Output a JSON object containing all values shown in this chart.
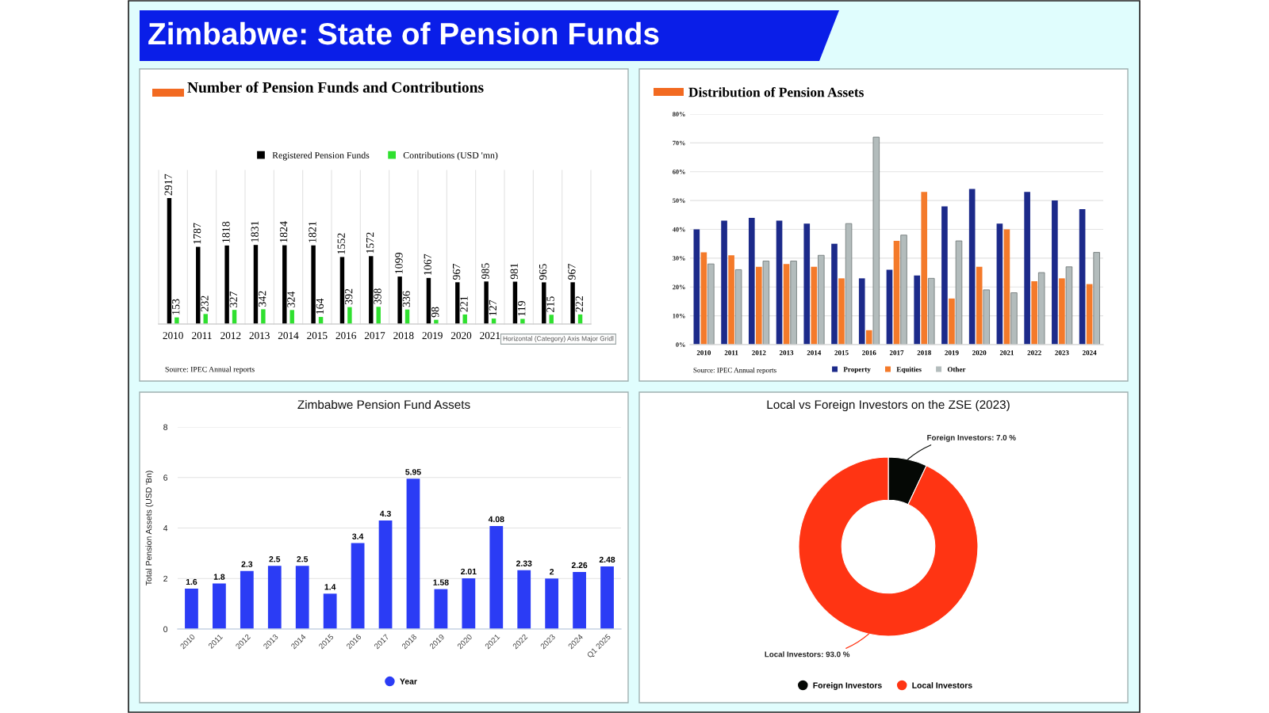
{
  "chart_data": [
    {
      "type": "other",
      "title": "Zimbabwe: State of Pension Funds"
    },
    {
      "type": "bar",
      "title": "Number of Pension Funds and Contributions",
      "categories": [
        "2010",
        "2011",
        "2012",
        "2013",
        "2014",
        "2015",
        "2016",
        "2017",
        "2018",
        "2019",
        "2020",
        "2021",
        null,
        null,
        null
      ],
      "series": [
        {
          "name": "Registered Pension Funds",
          "color": "#000000",
          "values": [
            2917,
            1787,
            1818,
            1831,
            1824,
            1821,
            1552,
            1572,
            1099,
            1067,
            967,
            985,
            981,
            965,
            967
          ]
        },
        {
          "name": "Contributions (USD 'mn)",
          "color": "#2fe02f",
          "values": [
            153,
            232,
            327,
            342,
            324,
            164,
            392,
            398,
            336,
            98,
            221,
            127,
            119,
            215,
            222
          ]
        }
      ],
      "data_labels": true,
      "grid": "x",
      "legend": "top",
      "tick_labels": "x",
      "annotations": [
        "Source: IPEC Annual reports",
        "Horizontal (Category) Axis Major Gridl"
      ]
    },
    {
      "type": "bar",
      "title": "Distribution of Pension Assets",
      "categories": [
        "2010",
        "2011",
        "2012",
        "2013",
        "2014",
        "2015",
        "2016",
        "2017",
        "2018",
        "2019",
        "2020",
        "2021",
        "2022",
        "2023",
        "2024"
      ],
      "series": [
        {
          "name": "Property",
          "color": "#1c2a8a",
          "values": [
            40,
            43,
            44,
            43,
            42,
            35,
            23,
            26,
            24,
            48,
            54,
            42,
            53,
            50,
            47
          ]
        },
        {
          "name": "Equities",
          "color": "#f47a2a",
          "values": [
            32,
            31,
            27,
            28,
            27,
            23,
            5,
            36,
            53,
            16,
            27,
            40,
            22,
            23,
            21
          ]
        },
        {
          "name": "Other",
          "color": "#b3bcbc",
          "values": [
            28,
            26,
            29,
            29,
            31,
            42,
            72,
            38,
            23,
            36,
            19,
            18,
            25,
            27,
            32
          ]
        }
      ],
      "ylim": [
        0,
        80
      ],
      "yticks": [
        {
          "value": 0,
          "label": "0%"
        },
        {
          "value": 10,
          "label": "10%"
        },
        {
          "value": 20,
          "label": "20%"
        },
        {
          "value": 30,
          "label": "30%"
        },
        {
          "value": 40,
          "label": "40%"
        },
        {
          "value": 50,
          "label": "50%"
        },
        {
          "value": 60,
          "label": "60%"
        },
        {
          "value": 70,
          "label": "70%"
        },
        {
          "value": 80,
          "label": "80%"
        }
      ],
      "grid": "y",
      "legend": "bottom",
      "annotations": [
        "Source: IPEC Annual reports"
      ]
    },
    {
      "type": "bar",
      "title": "Zimbabwe Pension Fund Assets",
      "ylabel": "Total Pension Assets (USD 'Bn)",
      "categories": [
        "2010",
        "2011",
        "2012",
        "2013",
        "2014",
        "2015",
        "2016",
        "2017",
        "2018",
        "2019",
        "2020",
        "2021",
        "2022",
        "2023",
        "2024",
        "Q1 2025"
      ],
      "series": [
        {
          "name": "Year",
          "color": "#2b3cf5",
          "values": [
            1.6,
            1.8,
            2.3,
            2.5,
            2.5,
            1.4,
            3.4,
            4.3,
            5.95,
            1.58,
            2.01,
            4.08,
            2.33,
            2,
            2.26,
            2.48
          ]
        }
      ],
      "ylim": [
        0,
        8
      ],
      "yticks": [
        0,
        2,
        4,
        6,
        8
      ],
      "grid": "y",
      "legend": "bottom",
      "data_labels": true
    },
    {
      "type": "donut",
      "title": "Local vs Foreign Investors on the ZSE (2023)",
      "categories": [
        "Foreign Investors",
        "Local Investors"
      ],
      "values": [
        7.0,
        93.0
      ],
      "colors": [
        "#050805",
        "#ff3413"
      ],
      "value_labels": [
        "Foreign Investors: 7.0 %",
        "Local Investors: 93.0 %"
      ],
      "legend": "bottom"
    }
  ]
}
